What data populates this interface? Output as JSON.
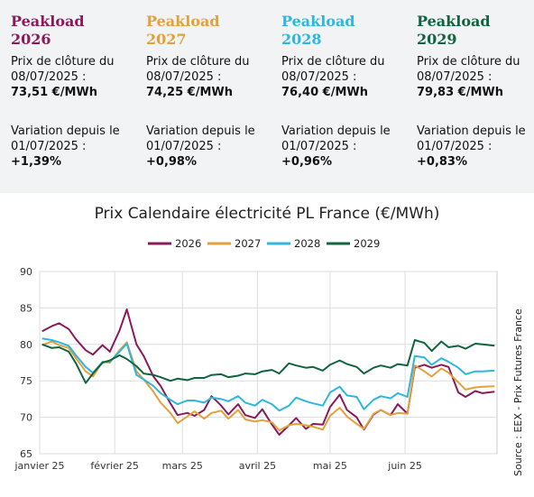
{
  "summary_cards": [
    {
      "title": "Peakload\n2026",
      "color": "#8b1a5c",
      "close_label": "Prix de clôture du 08/07/2025 :",
      "close_value": "73,51 €/MWh",
      "var_label": "Variation depuis le 01/07/2025 :",
      "var_value": "+1,39%"
    },
    {
      "title": "Peakload\n2027",
      "color": "#e2a13a",
      "close_label": "Prix de clôture du 08/07/2025 :",
      "close_value": "74,25 €/MWh",
      "var_label": "Variation depuis le 01/07/2025 :",
      "var_value": "+0,98%"
    },
    {
      "title": "Peakload\n2028",
      "color": "#2bb7df",
      "close_label": "Prix de clôture du 08/07/2025 :",
      "close_value": "76,40 €/MWh",
      "var_label": "Variation depuis le 01/07/2025 :",
      "var_value": "+0,96%"
    },
    {
      "title": "Peakload\n2029",
      "color": "#11643e",
      "close_label": "Prix de clôture du 08/07/2025 :",
      "close_value": "79,83 €/MWh",
      "var_label": "Variation depuis le 01/07/2025 :",
      "var_value": "+0,83%"
    }
  ],
  "source_text": "Source : EEX - Prix Futures France",
  "chart_data": {
    "type": "line",
    "title": "Prix Calendaire électricité PL France (€/MWh)",
    "xlabel": "",
    "ylabel": "",
    "ylim": [
      65,
      90
    ],
    "yticks": [
      65,
      70,
      75,
      80,
      85,
      90
    ],
    "grid": true,
    "legend_position": "top",
    "xticks": [
      {
        "date": "2025-01-01",
        "label": "janvier 25"
      },
      {
        "date": "2025-02-01",
        "label": "février 25"
      },
      {
        "date": "2025-03-01",
        "label": "mars 25"
      },
      {
        "date": "2025-04-01",
        "label": "avril 25"
      },
      {
        "date": "2025-05-01",
        "label": "mai 25"
      },
      {
        "date": "2025-06-01",
        "label": "juin 25"
      }
    ],
    "x": [
      "2025-01-02",
      "2025-01-06",
      "2025-01-09",
      "2025-01-13",
      "2025-01-16",
      "2025-01-20",
      "2025-01-23",
      "2025-01-27",
      "2025-01-30",
      "2025-02-03",
      "2025-02-06",
      "2025-02-10",
      "2025-02-13",
      "2025-02-17",
      "2025-02-20",
      "2025-02-24",
      "2025-02-27",
      "2025-03-03",
      "2025-03-06",
      "2025-03-10",
      "2025-03-13",
      "2025-03-17",
      "2025-03-20",
      "2025-03-24",
      "2025-03-27",
      "2025-03-31",
      "2025-04-03",
      "2025-04-07",
      "2025-04-10",
      "2025-04-14",
      "2025-04-17",
      "2025-04-21",
      "2025-04-24",
      "2025-04-28",
      "2025-05-01",
      "2025-05-05",
      "2025-05-08",
      "2025-05-12",
      "2025-05-15",
      "2025-05-19",
      "2025-05-22",
      "2025-05-26",
      "2025-05-29",
      "2025-06-02",
      "2025-06-05",
      "2025-06-09",
      "2025-06-12",
      "2025-06-16",
      "2025-06-19",
      "2025-06-23",
      "2025-06-26",
      "2025-06-30",
      "2025-07-03",
      "2025-07-08"
    ],
    "series": [
      {
        "name": "2026",
        "color": "#8b1a5c",
        "values": [
          81.8,
          82.5,
          82.9,
          82.1,
          80.7,
          79.2,
          78.6,
          79.9,
          79.0,
          81.9,
          84.8,
          80.0,
          78.4,
          75.6,
          74.3,
          71.9,
          70.3,
          70.6,
          70.2,
          71.0,
          72.9,
          71.6,
          70.4,
          71.8,
          70.3,
          69.9,
          71.1,
          69.0,
          67.6,
          68.9,
          69.9,
          68.4,
          69.1,
          69.0,
          71.4,
          73.1,
          71.0,
          70.0,
          68.3,
          70.4,
          71.0,
          70.3,
          71.8,
          70.5,
          76.8,
          77.2,
          76.8,
          77.2,
          76.9,
          73.4,
          72.8,
          73.6,
          73.3,
          73.5
        ]
      },
      {
        "name": "2027",
        "color": "#e2a13a",
        "values": [
          79.9,
          80.4,
          79.9,
          79.5,
          78.1,
          76.3,
          75.6,
          77.6,
          77.5,
          79.2,
          80.3,
          76.3,
          75.2,
          73.5,
          72.0,
          70.6,
          69.2,
          70.1,
          70.8,
          69.8,
          70.6,
          70.9,
          69.8,
          71.0,
          69.7,
          69.4,
          69.6,
          69.3,
          68.2,
          68.9,
          69.1,
          68.9,
          68.7,
          68.3,
          70.2,
          71.3,
          70.1,
          69.1,
          68.4,
          70.5,
          71.0,
          70.3,
          70.6,
          70.5,
          77.1,
          76.3,
          75.6,
          76.7,
          76.1,
          74.8,
          73.8,
          74.1,
          74.2,
          74.25
        ]
      },
      {
        "name": "2028",
        "color": "#2bb7df",
        "values": [
          80.8,
          80.6,
          80.3,
          79.8,
          78.5,
          76.9,
          76.1,
          77.6,
          77.6,
          79.0,
          80.1,
          75.8,
          75.2,
          74.3,
          73.3,
          72.4,
          71.8,
          72.3,
          72.3,
          72.0,
          72.7,
          72.5,
          72.2,
          72.9,
          72.0,
          71.6,
          72.4,
          71.8,
          70.9,
          71.6,
          72.7,
          72.2,
          71.9,
          71.6,
          73.4,
          74.2,
          73.0,
          72.8,
          71.1,
          72.4,
          72.9,
          72.6,
          73.3,
          72.8,
          78.4,
          78.2,
          77.2,
          78.1,
          77.6,
          76.8,
          75.9,
          76.3,
          76.3,
          76.4
        ]
      },
      {
        "name": "2029",
        "color": "#11643e",
        "values": [
          80.0,
          79.5,
          79.6,
          79.0,
          77.4,
          74.7,
          76.0,
          77.5,
          77.8,
          78.5,
          78.0,
          77.0,
          76.0,
          75.8,
          75.5,
          75.0,
          75.3,
          75.1,
          75.4,
          75.4,
          75.8,
          75.9,
          75.5,
          75.7,
          76.0,
          75.9,
          76.3,
          76.5,
          76.0,
          77.4,
          77.1,
          76.8,
          76.9,
          76.4,
          77.2,
          77.8,
          77.3,
          76.9,
          76.0,
          76.8,
          77.1,
          76.8,
          77.3,
          77.1,
          80.6,
          80.2,
          79.1,
          80.4,
          79.6,
          79.8,
          79.4,
          80.1,
          80.0,
          79.83
        ]
      }
    ]
  }
}
